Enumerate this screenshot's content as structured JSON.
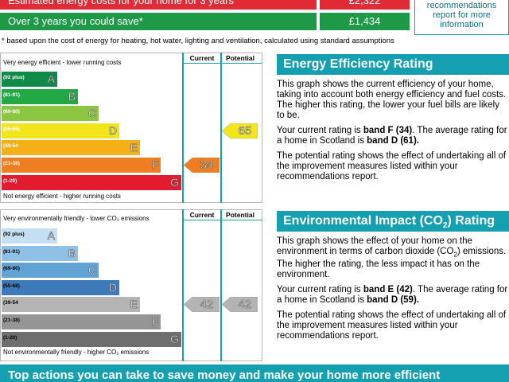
{
  "costs": {
    "row1_label": "Estimated energy costs for your home for 3 years",
    "row1_value": "£2,322",
    "row2_label": "Over 3 years you could save*",
    "row2_value": "£1,434"
  },
  "recommendations_box": "recommendations report for more information",
  "footnote": "* based upon the cost of energy for heating, hot water, lighting and ventilation, calculated using standard assumptions",
  "chart_data": [
    {
      "type": "rating",
      "name": "energy",
      "top_caption": "Very energy efficient - lower running costs",
      "bottom_caption": "Not energy efficient - higher running costs",
      "columns": [
        "Current",
        "Potential"
      ],
      "bands": [
        {
          "range": "(92 plus)",
          "letter": "A",
          "color": "#0f8a48"
        },
        {
          "range": "(81-91)",
          "letter": "B",
          "color": "#22a844"
        },
        {
          "range": "(69-80)",
          "letter": "C",
          "color": "#8cc640"
        },
        {
          "range": "(55-68)",
          "letter": "D",
          "color": "#f2e51c"
        },
        {
          "range": "(39-54",
          "letter": "E",
          "color": "#f5b018"
        },
        {
          "range": "(21-38)",
          "letter": "F",
          "color": "#ef7d22"
        },
        {
          "range": "(1-20)",
          "letter": "G",
          "color": "#e21b2e"
        }
      ],
      "current": {
        "value": "34",
        "band": "F",
        "color": "#ef7d22"
      },
      "potential": {
        "value": "65",
        "band": "D",
        "color": "#f2e51c"
      }
    },
    {
      "type": "rating",
      "name": "environmental",
      "top_caption": "Very environmentally friendly - lower CO₂ emissions",
      "bottom_caption": "Not environmentally friendly - higher CO₂ emissions",
      "columns": [
        "Current",
        "Potential"
      ],
      "bands": [
        {
          "range": "(92 plus)",
          "letter": "A",
          "color": "#c5dff2"
        },
        {
          "range": "(81-91)",
          "letter": "B",
          "color": "#8fc1e6"
        },
        {
          "range": "(69-80)",
          "letter": "C",
          "color": "#62a3d6"
        },
        {
          "range": "(55-68)",
          "letter": "D",
          "color": "#3e79ba"
        },
        {
          "range": "(39-54",
          "letter": "E",
          "color": "#b4b4b4"
        },
        {
          "range": "(21-38)",
          "letter": "F",
          "color": "#959595"
        },
        {
          "range": "(1-20)",
          "letter": "G",
          "color": "#6e6e6e"
        }
      ],
      "current": {
        "value": "42",
        "band": "E",
        "color": "#b4b4b4"
      },
      "potential": {
        "value": "42",
        "band": "E",
        "color": "#b4b4b4"
      }
    }
  ],
  "energy_panel": {
    "title": "Energy Efficiency Rating",
    "p1": "This graph shows the current efficiency of your home, taking into account both energy efficiency and fuel costs. The higher this rating, the lower your fuel bills are likely to be.",
    "p2a": "Your current rating is ",
    "p2b": "band F (34)",
    "p2c": ". The average rating for a home in Scotland is ",
    "p2d": "band D (61).",
    "p3": "The potential rating shows the effect of undertaking all of the improvement measures listed within your recommendations report."
  },
  "env_panel": {
    "title_a": "Environmental Impact (CO",
    "title_sub": "2",
    "title_b": ") Rating",
    "p1a": "This graph shows the effect of your home on the environment in terms of carbon dioxide (CO",
    "p1sub": "2",
    "p1b": ") emissions. The higher the rating, the less impact it has on the environment.",
    "p2a": "Your current rating is ",
    "p2b": "band E (42)",
    "p2c": ". The average rating for a home in Scotland is ",
    "p2d": "band D (59).",
    "p3": "The potential rating shows the effect of undertaking all of the improvement measures listed within your recommendations report."
  },
  "bottom_bar": "Top actions you can take to save money and make your home more efficient"
}
